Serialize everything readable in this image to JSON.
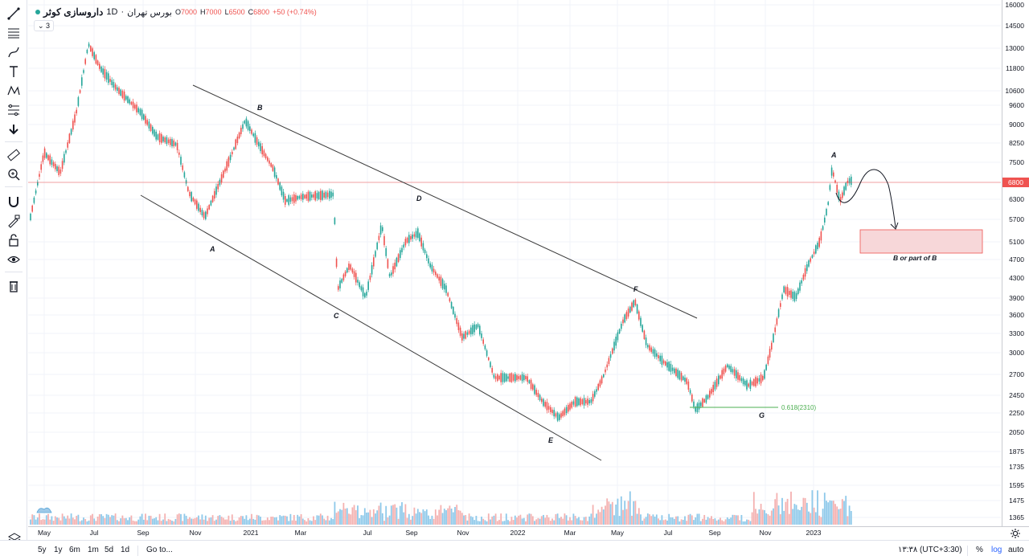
{
  "legend": {
    "symbol": "داروسازی کوثر",
    "interval": "1D",
    "exchange": "بورس تهران",
    "open_label": "O",
    "open": "7000",
    "high_label": "H",
    "high": "7000",
    "low_label": "L",
    "low": "6500",
    "close_label": "C",
    "close": "6800",
    "change": "+50 (+0.74%)",
    "collapsed_count": "3"
  },
  "price_scale": {
    "ticks": [
      "16000",
      "14500",
      "13000",
      "11800",
      "10600",
      "9600",
      "9000",
      "8250",
      "7500",
      "6800",
      "6300",
      "5700",
      "5100",
      "4700",
      "4300",
      "3900",
      "3600",
      "3300",
      "3000",
      "2700",
      "2450",
      "2250",
      "2050",
      "1875",
      "1735",
      "1595",
      "1475",
      "1365"
    ],
    "current_price": "6800"
  },
  "time_scale": {
    "ticks": [
      "May",
      "Jul",
      "Sep",
      "Nov",
      "2021",
      "Mar",
      "Jul",
      "Sep",
      "Nov",
      "2022",
      "Mar",
      "May",
      "Jul",
      "Sep",
      "Nov",
      "2023"
    ]
  },
  "annotations": {
    "wave_labels": [
      "A",
      "B",
      "C",
      "D",
      "E",
      "F",
      "G",
      "A"
    ],
    "fib_label": "0.618(2310)",
    "target_label": "B or part of B"
  },
  "bottom_bar": {
    "ranges": [
      "5y",
      "1y",
      "6m",
      "1m",
      "5d",
      "1d"
    ],
    "goto": "Go to...",
    "timezone": "۱۳:۳۸ (UTC+3:30)",
    "percent": "%",
    "log": "log",
    "auto": "auto"
  },
  "colors": {
    "up": "#26a69a",
    "down": "#ef5350",
    "volume_up": "#8ec9ea",
    "volume_down": "#f4b1b0",
    "accent": "#2962ff",
    "target_box": "#f7d7d9"
  },
  "toolbar": {
    "icons": [
      "trend-line-icon",
      "horizontal-lines-icon",
      "brush-icon",
      "text-icon",
      "pattern-icon",
      "fib-icon",
      "arrow-down-icon",
      "ruler-icon",
      "zoom-icon",
      "magnet-icon",
      "lock-drawing-icon",
      "lock-icon",
      "eye-icon",
      "trash-icon"
    ]
  }
}
